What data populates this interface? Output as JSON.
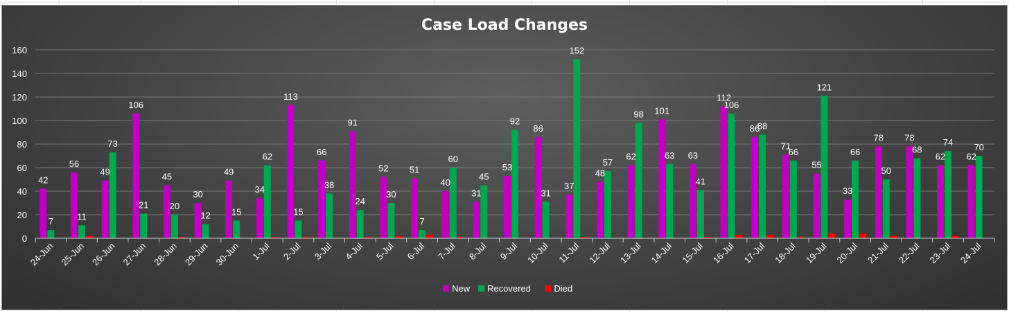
{
  "chart_data": {
    "type": "bar",
    "title": "Case Load Changes",
    "xlabel": "",
    "ylabel": "",
    "ylim": [
      0,
      160
    ],
    "yticks": [
      0,
      20,
      40,
      60,
      80,
      100,
      120,
      140,
      160
    ],
    "grid": true,
    "legend_position": "bottom",
    "categories": [
      "24-Jun",
      "25-Jun",
      "26-Jun",
      "27-Jun",
      "28-Jun",
      "29-Jun",
      "30-Jun",
      "1-Jul",
      "2-Jul",
      "3-Jul",
      "4-Jul",
      "5-Jul",
      "6-Jul",
      "7-Jul",
      "8-Jul",
      "9-Jul",
      "10-Jul",
      "11-Jul",
      "12-Jul",
      "13-Jul",
      "14-Jul",
      "15-Jul",
      "16-Jul",
      "17-Jul",
      "18-Jul",
      "19-Jul",
      "20-Jul",
      "21-Jul",
      "22-Jul",
      "23-Jul",
      "24-Jul"
    ],
    "series": [
      {
        "name": "New",
        "color": "#c000c0",
        "values": [
          42,
          56,
          49,
          106,
          45,
          30,
          49,
          34,
          113,
          66,
          91,
          52,
          51,
          40,
          31,
          53,
          86,
          37,
          48,
          62,
          101,
          63,
          112,
          86,
          71,
          55,
          33,
          78,
          78,
          62,
          62
        ]
      },
      {
        "name": "Recovered",
        "color": "#00a650",
        "values": [
          7,
          11,
          73,
          21,
          20,
          12,
          15,
          62,
          15,
          38,
          24,
          30,
          7,
          60,
          45,
          92,
          31,
          152,
          57,
          98,
          63,
          41,
          106,
          88,
          66,
          121,
          66,
          50,
          68,
          74,
          70
        ]
      },
      {
        "name": "Died",
        "color": "#ff0000",
        "values": [
          0,
          2,
          0,
          0,
          1,
          0,
          0,
          1,
          1,
          0,
          1,
          2,
          3,
          1,
          0,
          0,
          0,
          1,
          0,
          0,
          0,
          1,
          3,
          3,
          1,
          4,
          4,
          2,
          0,
          2,
          0
        ]
      }
    ],
    "data_labels": [
      "New",
      "Recovered"
    ]
  }
}
